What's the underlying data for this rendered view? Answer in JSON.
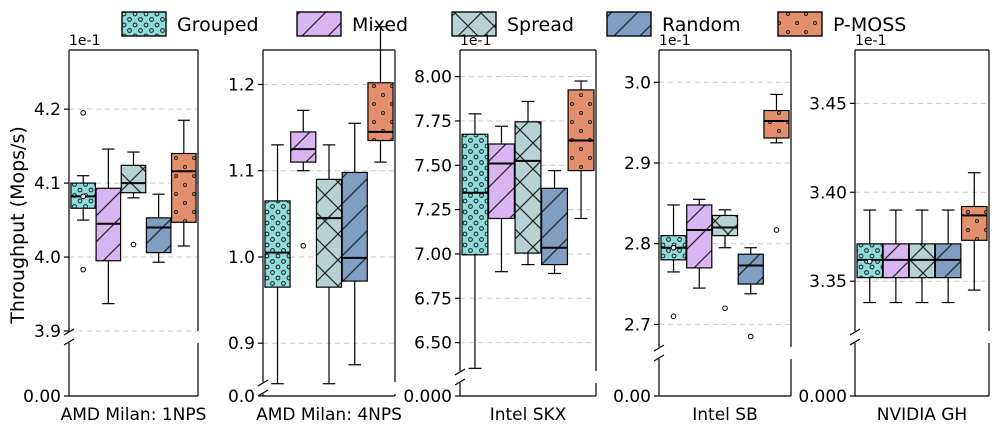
{
  "chart_data": {
    "type": "box",
    "ylabel": "Throughput (Mops/s)",
    "legend": {
      "position": "top",
      "entries": [
        {
          "name": "Grouped",
          "color": "#8fdcdc",
          "hatch": "circles"
        },
        {
          "name": "Mixed",
          "color": "#d8b4f0",
          "hatch": "diagonal"
        },
        {
          "name": "Spread",
          "color": "#b7d2d2",
          "hatch": "cross"
        },
        {
          "name": "Random",
          "color": "#7f9fc2",
          "hatch": "diagonal"
        },
        {
          "name": "P-MOSS",
          "color": "#e38f6d",
          "hatch": "dots"
        }
      ]
    },
    "panels": [
      {
        "title": "AMD Milan: 1NPS",
        "scale_label": "1e-1",
        "ylim": [
          3.9,
          4.28
        ],
        "yticks": [
          "4.2",
          "4.1",
          "4.0",
          "3.9"
        ],
        "yticks_values": [
          4.2,
          4.1,
          4.0,
          3.9
        ],
        "zero_label": "0.00",
        "boxes": [
          {
            "series": "Grouped",
            "whislo": 4.05,
            "q1": 4.066,
            "med": 4.082,
            "q3": 4.1,
            "whishi": 4.11,
            "fliers": [
              4.195,
              3.983,
              4.082
            ]
          },
          {
            "series": "Mixed",
            "whislo": 3.937,
            "q1": 3.995,
            "med": 4.045,
            "q3": 4.093,
            "whishi": 4.146,
            "fliers": []
          },
          {
            "series": "Spread",
            "whislo": 4.08,
            "q1": 4.087,
            "med": 4.1,
            "q3": 4.124,
            "whishi": 4.142,
            "fliers": [
              4.017
            ]
          },
          {
            "series": "Random",
            "whislo": 3.993,
            "q1": 4.006,
            "med": 4.04,
            "q3": 4.053,
            "whishi": 4.085,
            "fliers": []
          },
          {
            "series": "P-MOSS",
            "whislo": 4.015,
            "q1": 4.047,
            "med": 4.116,
            "q3": 4.14,
            "whishi": 4.185,
            "fliers": []
          }
        ]
      },
      {
        "title": "AMD Milan: 4NPS",
        "scale_label": "",
        "ylim": [
          0.855,
          1.24
        ],
        "yticks": [
          "1.2",
          "1.1",
          "1.0",
          "0.9"
        ],
        "yticks_values": [
          1.2,
          1.1,
          1.0,
          0.9
        ],
        "zero_label": "0.0",
        "boxes": [
          {
            "series": "Grouped",
            "whislo": 0.853,
            "q1": 0.965,
            "med": 1.005,
            "q3": 1.065,
            "whishi": 1.13,
            "fliers": []
          },
          {
            "series": "Mixed",
            "whislo": 1.1,
            "q1": 1.11,
            "med": 1.125,
            "q3": 1.145,
            "whishi": 1.17,
            "fliers": [
              1.013
            ]
          },
          {
            "series": "Spread",
            "whislo": 0.853,
            "q1": 0.965,
            "med": 1.045,
            "q3": 1.09,
            "whishi": 1.13,
            "fliers": []
          },
          {
            "series": "Random",
            "whislo": 0.875,
            "q1": 0.972,
            "med": 0.999,
            "q3": 1.098,
            "whishi": 1.155,
            "fliers": []
          },
          {
            "series": "P-MOSS",
            "whislo": 1.11,
            "q1": 1.135,
            "med": 1.145,
            "q3": 1.202,
            "whishi": 1.267,
            "fliers": []
          }
        ]
      },
      {
        "title": "Intel SKX",
        "scale_label": "1e-1",
        "ylim": [
          6.34,
          8.15
        ],
        "yticks": [
          "8.00",
          "7.75",
          "7.50",
          "7.25",
          "7.00",
          "6.75",
          "6.50"
        ],
        "yticks_values": [
          8.0,
          7.75,
          7.5,
          7.25,
          7.0,
          6.75,
          6.5
        ],
        "zero_label": "0.000",
        "boxes": [
          {
            "series": "Grouped",
            "whislo": 6.355,
            "q1": 6.995,
            "med": 7.345,
            "q3": 7.675,
            "whishi": 7.79,
            "fliers": []
          },
          {
            "series": "Mixed",
            "whislo": 6.9,
            "q1": 7.2,
            "med": 7.51,
            "q3": 7.62,
            "whishi": 7.72,
            "fliers": []
          },
          {
            "series": "Spread",
            "whislo": 6.94,
            "q1": 7.005,
            "med": 7.525,
            "q3": 7.745,
            "whishi": 7.86,
            "fliers": []
          },
          {
            "series": "Random",
            "whislo": 6.89,
            "q1": 6.94,
            "med": 7.035,
            "q3": 7.37,
            "whishi": 7.47,
            "fliers": []
          },
          {
            "series": "P-MOSS",
            "whislo": 7.2,
            "q1": 7.47,
            "med": 7.64,
            "q3": 7.925,
            "whishi": 7.975,
            "fliers": []
          }
        ]
      },
      {
        "title": "Intel SB",
        "scale_label": "1e-1",
        "ylim": [
          2.672,
          3.04
        ],
        "yticks": [
          "3.0",
          "2.9",
          "2.8",
          "2.7"
        ],
        "yticks_values": [
          3.0,
          2.9,
          2.8,
          2.7
        ],
        "zero_label": "0.00",
        "boxes": [
          {
            "series": "Grouped",
            "whislo": 2.765,
            "q1": 2.78,
            "med": 2.795,
            "q3": 2.81,
            "whishi": 2.848,
            "fliers": [
              2.71,
              2.795
            ]
          },
          {
            "series": "Mixed",
            "whislo": 2.745,
            "q1": 2.77,
            "med": 2.817,
            "q3": 2.848,
            "whishi": 2.855,
            "fliers": []
          },
          {
            "series": "Spread",
            "whislo": 2.795,
            "q1": 2.81,
            "med": 2.82,
            "q3": 2.835,
            "whishi": 2.842,
            "fliers": [
              2.72
            ]
          },
          {
            "series": "Random",
            "whislo": 2.738,
            "q1": 2.75,
            "med": 2.773,
            "q3": 2.787,
            "whishi": 2.795,
            "fliers": [
              2.685
            ]
          },
          {
            "series": "P-MOSS",
            "whislo": 2.925,
            "q1": 2.931,
            "med": 2.952,
            "q3": 2.965,
            "whishi": 2.985,
            "fliers": [
              2.817
            ]
          }
        ]
      },
      {
        "title": "NVIDIA GH",
        "scale_label": "1e-1",
        "ylim": [
          3.322,
          3.48
        ],
        "yticks": [
          "3.45",
          "3.40",
          "3.35"
        ],
        "yticks_values": [
          3.45,
          3.4,
          3.35
        ],
        "zero_label": "0.000",
        "boxes": [
          {
            "series": "Grouped",
            "whislo": 3.338,
            "q1": 3.352,
            "med": 3.362,
            "q3": 3.371,
            "whishi": 3.39,
            "fliers": [
              3.361
            ]
          },
          {
            "series": "Mixed",
            "whislo": 3.338,
            "q1": 3.352,
            "med": 3.362,
            "q3": 3.371,
            "whishi": 3.39,
            "fliers": []
          },
          {
            "series": "Spread",
            "whislo": 3.338,
            "q1": 3.352,
            "med": 3.362,
            "q3": 3.371,
            "whishi": 3.39,
            "fliers": []
          },
          {
            "series": "Random",
            "whislo": 3.338,
            "q1": 3.352,
            "med": 3.362,
            "q3": 3.371,
            "whishi": 3.39,
            "fliers": []
          },
          {
            "series": "P-MOSS",
            "whislo": 3.345,
            "q1": 3.373,
            "med": 3.387,
            "q3": 3.392,
            "whishi": 3.411,
            "fliers": []
          }
        ]
      }
    ]
  }
}
